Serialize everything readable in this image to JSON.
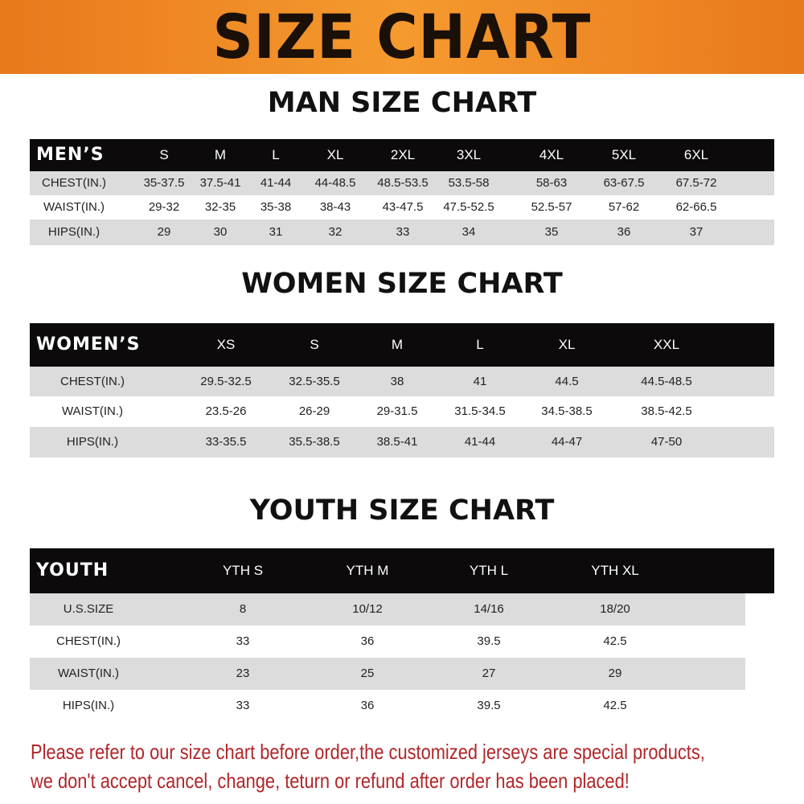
{
  "banner_title": "SIZE CHART",
  "colors": {
    "banner": "#f08a24",
    "header_row": "#0c0a0a",
    "stripe": "#dcdcdc",
    "footer_text": "#b0262a"
  },
  "men": {
    "title": "MAN SIZE CHART",
    "header": [
      "MEN’S",
      "S",
      "M",
      "L",
      "XL",
      "2XL",
      "3XL",
      "4XL",
      "5XL",
      "6XL"
    ],
    "rows": [
      [
        "CHEST(IN.)",
        "35-37.5",
        "37.5-41",
        "41-44",
        "44-48.5",
        "48.5-53.5",
        "53.5-58",
        "58-63",
        "63-67.5",
        "67.5-72"
      ],
      [
        "WAIST(IN.)",
        "29-32",
        "32-35",
        "35-38",
        "38-43",
        "43-47.5",
        "47.5-52.5",
        "52.5-57",
        "57-62",
        "62-66.5"
      ],
      [
        "HIPS(IN.)",
        "29",
        "30",
        "31",
        "32",
        "33",
        "34",
        "35",
        "36",
        "37"
      ]
    ]
  },
  "women": {
    "title": "WOMEN SIZE CHART",
    "header": [
      "WOMEN’S",
      "XS",
      "S",
      "M",
      "L",
      "XL",
      "XXL"
    ],
    "rows": [
      [
        "CHEST(IN.)",
        "29.5-32.5",
        "32.5-35.5",
        "38",
        "41",
        "44.5",
        "44.5-48.5"
      ],
      [
        "WAIST(IN.)",
        "23.5-26",
        "26-29",
        "29-31.5",
        "31.5-34.5",
        "34.5-38.5",
        "38.5-42.5"
      ],
      [
        "HIPS(IN.)",
        "33-35.5",
        "35.5-38.5",
        "38.5-41",
        "41-44",
        "44-47",
        "47-50"
      ]
    ]
  },
  "youth": {
    "title": "YOUTH SIZE CHART",
    "header": [
      "YOUTH",
      "YTH S",
      "YTH M",
      "YTH L",
      "YTH XL"
    ],
    "rows": [
      [
        "U.S.SIZE",
        "8",
        "10/12",
        "14/16",
        "18/20"
      ],
      [
        "CHEST(IN.)",
        "33",
        "36",
        "39.5",
        "42.5"
      ],
      [
        "WAIST(IN.)",
        "23",
        "25",
        "27",
        "29"
      ],
      [
        "HIPS(IN.)",
        "33",
        "36",
        "39.5",
        "42.5"
      ]
    ]
  },
  "footer": {
    "line1": "Please refer to our size chart before order,the customized jerseys are special products,",
    "line2": "we don't accept cancel, change, teturn or refund after order has been placed!"
  }
}
